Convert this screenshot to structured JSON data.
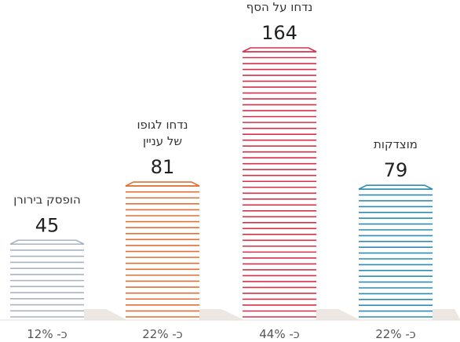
{
  "chart_data": {
    "type": "bar",
    "categories": [
      [
        "הופסק בירורן"
      ],
      [
        "נדחו לגופו",
        "של עניין"
      ],
      [
        "נדחו על הסף"
      ],
      [
        "מוצדקות"
      ]
    ],
    "values": [
      45,
      81,
      164,
      79
    ],
    "percent_labels": [
      "כ- 12%",
      "כ- 22%",
      "כ- 44%",
      "כ- 22%"
    ],
    "colors": [
      "#a9b3c2",
      "#e07035",
      "#d6304a",
      "#2d8eb4"
    ],
    "ylim": [
      0,
      164
    ],
    "grid": false,
    "legend": "none"
  }
}
